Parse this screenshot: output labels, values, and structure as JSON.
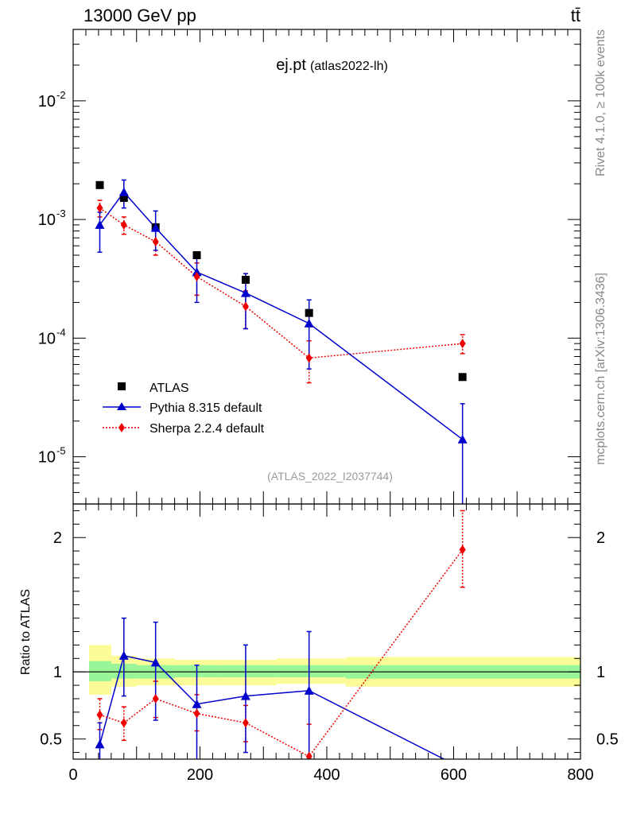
{
  "header": {
    "energy_label": "13000 GeV pp",
    "process_label": "tt̄"
  },
  "title": {
    "main": "ej.pt",
    "sub": "(atlas2022-lh)"
  },
  "side_labels": {
    "rivet": "Rivet 4.1.0, ≥ 100k events",
    "mcplots": "mcplots.cern.ch [arXiv:1306.3436]"
  },
  "watermark": "(ATLAS_2022_I2037744)",
  "legend": {
    "atlas": "ATLAS",
    "pythia": "Pythia 8.315 default",
    "sherpa": "Sherpa 2.2.4 default"
  },
  "ratio_ylabel": "Ratio to ATLAS",
  "colors": {
    "atlas": "#000000",
    "pythia": "#0000cc",
    "sherpa": "#ee0000",
    "band_inner": "#98f598",
    "band_outer": "#fbfb98"
  },
  "chart_data": [
    {
      "type": "scatter",
      "scale": "log",
      "title": "ej.pt (atlas2022-lh)",
      "xlim": [
        0,
        800
      ],
      "ylim": [
        4e-06,
        0.04
      ],
      "yticks": [
        "10^-2",
        "10^-3",
        "10^-4",
        "10^-5"
      ],
      "x": [
        42,
        80,
        130,
        195,
        272,
        372,
        614
      ],
      "series": [
        {
          "name": "ATLAS",
          "values": [
            0.00195,
            0.00152,
            0.00086,
            0.0005,
            0.00031,
            0.000163,
            4.7e-05
          ]
        },
        {
          "name": "Pythia 8.315 default",
          "values": [
            0.0009,
            0.0017,
            0.00085,
            0.00036,
            0.00024,
            0.000133,
            1.4e-05
          ],
          "err_lo": [
            0.00053,
            0.00125,
            0.00055,
            0.0002,
            0.00012,
            5.5e-05,
            3e-06
          ],
          "err_hi": [
            0.00115,
            0.00215,
            0.00118,
            0.00052,
            0.00035,
            0.00021,
            2.8e-05
          ]
        },
        {
          "name": "Sherpa 2.2.4 default",
          "values": [
            0.00125,
            0.0009,
            0.00065,
            0.00033,
            0.000185,
            6.8e-05,
            9e-05
          ],
          "err_lo": [
            0.00105,
            0.00075,
            0.0005,
            0.00023,
            0.00012,
            4.2e-05,
            7.4e-05
          ],
          "err_hi": [
            0.00145,
            0.00105,
            0.0008,
            0.00043,
            0.00025,
            9.5e-05,
            0.000107
          ]
        }
      ]
    },
    {
      "type": "line",
      "ylabel": "Ratio to ATLAS",
      "xlim": [
        0,
        800
      ],
      "ylim": [
        0.35,
        2.25
      ],
      "x_ticks": [
        0,
        200,
        400,
        600,
        800
      ],
      "y_ticks": [
        0.5,
        1,
        2
      ],
      "x": [
        42,
        80,
        130,
        195,
        272,
        372,
        614
      ],
      "band_edges": [
        25,
        60,
        100,
        160,
        230,
        320,
        430,
        800
      ],
      "band_inner": [
        [
          0.93,
          1.08
        ],
        [
          0.95,
          1.06
        ],
        [
          0.95,
          1.05
        ],
        [
          0.96,
          1.05
        ],
        [
          0.96,
          1.05
        ],
        [
          0.96,
          1.05
        ],
        [
          0.95,
          1.05
        ]
      ],
      "band_outer": [
        [
          0.83,
          1.2
        ],
        [
          0.89,
          1.12
        ],
        [
          0.9,
          1.1
        ],
        [
          0.9,
          1.09
        ],
        [
          0.9,
          1.09
        ],
        [
          0.91,
          1.1
        ],
        [
          0.89,
          1.11
        ]
      ],
      "series": [
        {
          "name": "Pythia 8.315 default",
          "values": [
            0.46,
            1.12,
            1.07,
            0.76,
            0.82,
            0.86,
            0.28
          ],
          "err_lo": [
            0.3,
            0.82,
            0.64,
            0.3,
            0.4,
            0.35,
            0.28
          ],
          "err_hi": [
            0.62,
            1.4,
            1.37,
            1.05,
            1.2,
            1.3,
            0.28
          ]
        },
        {
          "name": "Sherpa 2.2.4 default",
          "values": [
            0.68,
            0.62,
            0.8,
            0.69,
            0.62,
            0.37,
            1.91
          ],
          "err_lo": [
            0.57,
            0.49,
            0.66,
            0.56,
            0.48,
            0.27,
            1.63
          ],
          "err_hi": [
            0.8,
            0.74,
            0.93,
            0.83,
            0.75,
            0.61,
            2.2
          ]
        }
      ]
    }
  ]
}
